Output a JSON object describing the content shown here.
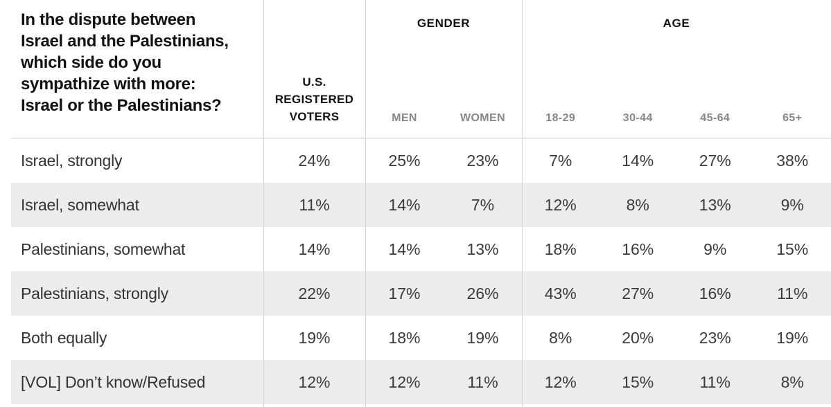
{
  "header": {
    "question": "In the dispute between Israel and the Palestinians, which side do you sympathize with more: Israel or the Palestinians?",
    "question_lines": [
      "In the dispute between",
      "Israel and the Palestinians,",
      "which side do you",
      "sympathize with more:",
      "Israel or the Palestinians?"
    ],
    "voters_label": "U.S. REGISTERED VOTERS",
    "gender_group_label": "GENDER",
    "gender_columns": [
      "MEN",
      "WOMEN"
    ],
    "age_group_label": "AGE",
    "age_columns": [
      "18-29",
      "30-44",
      "45-64",
      "65+"
    ]
  },
  "table": {
    "rows": [
      {
        "label": "Israel, strongly",
        "values": [
          "24%",
          "25%",
          "23%",
          "7%",
          "14%",
          "27%",
          "38%"
        ]
      },
      {
        "label": "Israel, somewhat",
        "values": [
          "11%",
          "14%",
          "7%",
          "12%",
          "8%",
          "13%",
          "9%"
        ]
      },
      {
        "label": "Palestinians, somewhat",
        "values": [
          "14%",
          "14%",
          "13%",
          "18%",
          "16%",
          "9%",
          "15%"
        ]
      },
      {
        "label": "Palestinians, strongly",
        "values": [
          "22%",
          "17%",
          "26%",
          "43%",
          "27%",
          "16%",
          "11%"
        ]
      },
      {
        "label": "Both equally",
        "values": [
          "19%",
          "18%",
          "19%",
          "8%",
          "20%",
          "23%",
          "19%"
        ]
      },
      {
        "label": "[VOL] Don’t know/Refused",
        "values": [
          "12%",
          "12%",
          "11%",
          "12%",
          "15%",
          "11%",
          "8%"
        ]
      }
    ]
  },
  "colors": {
    "stripe": "#ececec",
    "divider": "#d4d4d4",
    "header_rule": "#c9c9c9",
    "header_text": "#121212",
    "subheader_text": "#878787",
    "body_text": "#333333"
  },
  "chart_data": {
    "type": "table",
    "title": "In the dispute between Israel and the Palestinians, which side do you sympathize with more: Israel or the Palestinians?",
    "columns": [
      "U.S. registered voters",
      "Men",
      "Women",
      "18-29",
      "30-44",
      "45-64",
      "65+"
    ],
    "column_groups": [
      {
        "label": "Gender",
        "columns": [
          "Men",
          "Women"
        ]
      },
      {
        "label": "Age",
        "columns": [
          "18-29",
          "30-44",
          "45-64",
          "65+"
        ]
      }
    ],
    "row_labels": [
      "Israel, strongly",
      "Israel, somewhat",
      "Palestinians, somewhat",
      "Palestinians, strongly",
      "Both equally",
      "[VOL] Don’t know/Refused"
    ],
    "values_pct": [
      [
        24,
        25,
        23,
        7,
        14,
        27,
        38
      ],
      [
        11,
        14,
        7,
        12,
        8,
        13,
        9
      ],
      [
        14,
        14,
        13,
        18,
        16,
        9,
        15
      ],
      [
        22,
        17,
        26,
        43,
        27,
        16,
        11
      ],
      [
        19,
        18,
        19,
        8,
        20,
        23,
        19
      ],
      [
        12,
        12,
        11,
        12,
        15,
        11,
        8
      ]
    ]
  }
}
